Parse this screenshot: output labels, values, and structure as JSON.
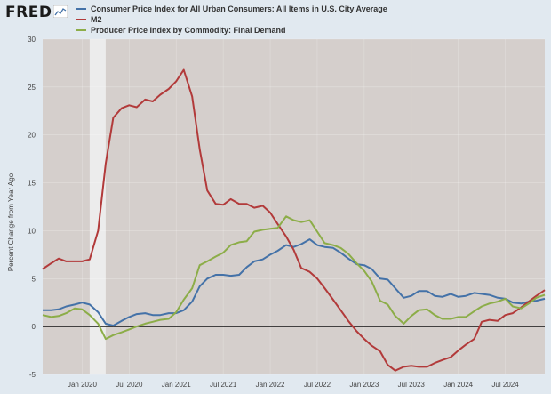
{
  "header": {
    "logo_text": "FRED",
    "logo_icon": "chart-line-icon"
  },
  "chart_data": {
    "type": "line",
    "ylabel": "Percent Change from Year Ago",
    "xlabel": "",
    "ylim": [
      -5,
      30
    ],
    "yticks": [
      -5,
      0,
      5,
      10,
      15,
      20,
      25,
      30
    ],
    "xticks": [
      {
        "label": "Jan 2020",
        "t": 2020.0
      },
      {
        "label": "Jul 2020",
        "t": 2020.5
      },
      {
        "label": "Jan 2021",
        "t": 2021.0
      },
      {
        "label": "Jul 2021",
        "t": 2021.5
      },
      {
        "label": "Jan 2022",
        "t": 2022.0
      },
      {
        "label": "Jul 2022",
        "t": 2022.5
      },
      {
        "label": "Jan 2023",
        "t": 2023.0
      },
      {
        "label": "Jul 2023",
        "t": 2023.5
      },
      {
        "label": "Jan 2024",
        "t": 2024.0
      },
      {
        "label": "Jul 2024",
        "t": 2024.5
      }
    ],
    "xlim": [
      2019.58,
      2024.92
    ],
    "recession": [
      2020.08,
      2020.25
    ],
    "background": "#d5cfcc",
    "recession_color": "#ececec",
    "series": [
      {
        "name": "Consumer Price Index for All Urban Consumers: All Items in U.S. City Average",
        "color": "#4472a8",
        "points": [
          [
            2019.58,
            1.7
          ],
          [
            2019.67,
            1.7
          ],
          [
            2019.75,
            1.8
          ],
          [
            2019.83,
            2.1
          ],
          [
            2019.92,
            2.3
          ],
          [
            2020.0,
            2.5
          ],
          [
            2020.08,
            2.3
          ],
          [
            2020.17,
            1.5
          ],
          [
            2020.25,
            0.3
          ],
          [
            2020.33,
            0.1
          ],
          [
            2020.42,
            0.6
          ],
          [
            2020.5,
            1.0
          ],
          [
            2020.58,
            1.3
          ],
          [
            2020.67,
            1.4
          ],
          [
            2020.75,
            1.2
          ],
          [
            2020.83,
            1.2
          ],
          [
            2020.92,
            1.4
          ],
          [
            2021.0,
            1.4
          ],
          [
            2021.08,
            1.7
          ],
          [
            2021.17,
            2.6
          ],
          [
            2021.25,
            4.2
          ],
          [
            2021.33,
            5.0
          ],
          [
            2021.42,
            5.4
          ],
          [
            2021.5,
            5.4
          ],
          [
            2021.58,
            5.3
          ],
          [
            2021.67,
            5.4
          ],
          [
            2021.75,
            6.2
          ],
          [
            2021.83,
            6.8
          ],
          [
            2021.92,
            7.0
          ],
          [
            2022.0,
            7.5
          ],
          [
            2022.08,
            7.9
          ],
          [
            2022.17,
            8.5
          ],
          [
            2022.25,
            8.3
          ],
          [
            2022.33,
            8.6
          ],
          [
            2022.42,
            9.1
          ],
          [
            2022.5,
            8.5
          ],
          [
            2022.58,
            8.3
          ],
          [
            2022.67,
            8.2
          ],
          [
            2022.75,
            7.7
          ],
          [
            2022.83,
            7.1
          ],
          [
            2022.92,
            6.5
          ],
          [
            2023.0,
            6.4
          ],
          [
            2023.08,
            6.0
          ],
          [
            2023.17,
            5.0
          ],
          [
            2023.25,
            4.9
          ],
          [
            2023.33,
            4.0
          ],
          [
            2023.42,
            3.0
          ],
          [
            2023.5,
            3.2
          ],
          [
            2023.58,
            3.7
          ],
          [
            2023.67,
            3.7
          ],
          [
            2023.75,
            3.2
          ],
          [
            2023.83,
            3.1
          ],
          [
            2023.92,
            3.4
          ],
          [
            2024.0,
            3.1
          ],
          [
            2024.08,
            3.2
          ],
          [
            2024.17,
            3.5
          ],
          [
            2024.25,
            3.4
          ],
          [
            2024.33,
            3.3
          ],
          [
            2024.42,
            3.0
          ],
          [
            2024.5,
            2.9
          ],
          [
            2024.58,
            2.5
          ],
          [
            2024.67,
            2.4
          ],
          [
            2024.75,
            2.6
          ],
          [
            2024.83,
            2.7
          ],
          [
            2024.92,
            2.9
          ]
        ]
      },
      {
        "name": "M2",
        "color": "#b23a3a",
        "points": [
          [
            2019.58,
            6.0
          ],
          [
            2019.67,
            6.6
          ],
          [
            2019.75,
            7.1
          ],
          [
            2019.83,
            6.8
          ],
          [
            2019.92,
            6.8
          ],
          [
            2020.0,
            6.8
          ],
          [
            2020.08,
            7.0
          ],
          [
            2020.17,
            10.0
          ],
          [
            2020.25,
            17.0
          ],
          [
            2020.33,
            21.8
          ],
          [
            2020.42,
            22.8
          ],
          [
            2020.5,
            23.1
          ],
          [
            2020.58,
            22.9
          ],
          [
            2020.67,
            23.7
          ],
          [
            2020.75,
            23.5
          ],
          [
            2020.83,
            24.2
          ],
          [
            2020.92,
            24.8
          ],
          [
            2021.0,
            25.6
          ],
          [
            2021.08,
            26.8
          ],
          [
            2021.17,
            24.0
          ],
          [
            2021.25,
            18.5
          ],
          [
            2021.33,
            14.2
          ],
          [
            2021.42,
            12.8
          ],
          [
            2021.5,
            12.7
          ],
          [
            2021.58,
            13.3
          ],
          [
            2021.67,
            12.8
          ],
          [
            2021.75,
            12.8
          ],
          [
            2021.83,
            12.4
          ],
          [
            2021.92,
            12.6
          ],
          [
            2022.0,
            11.9
          ],
          [
            2022.08,
            10.7
          ],
          [
            2022.17,
            9.4
          ],
          [
            2022.25,
            8.0
          ],
          [
            2022.33,
            6.1
          ],
          [
            2022.42,
            5.7
          ],
          [
            2022.5,
            5.0
          ],
          [
            2022.58,
            4.0
          ],
          [
            2022.67,
            2.8
          ],
          [
            2022.75,
            1.7
          ],
          [
            2022.83,
            0.6
          ],
          [
            2022.92,
            -0.5
          ],
          [
            2023.0,
            -1.3
          ],
          [
            2023.08,
            -2.0
          ],
          [
            2023.17,
            -2.6
          ],
          [
            2023.25,
            -4.0
          ],
          [
            2023.33,
            -4.6
          ],
          [
            2023.42,
            -4.2
          ],
          [
            2023.5,
            -4.1
          ],
          [
            2023.58,
            -4.2
          ],
          [
            2023.67,
            -4.2
          ],
          [
            2023.75,
            -3.8
          ],
          [
            2023.83,
            -3.5
          ],
          [
            2023.92,
            -3.2
          ],
          [
            2024.0,
            -2.5
          ],
          [
            2024.08,
            -1.9
          ],
          [
            2024.17,
            -1.3
          ],
          [
            2024.25,
            0.5
          ],
          [
            2024.33,
            0.7
          ],
          [
            2024.42,
            0.6
          ],
          [
            2024.5,
            1.2
          ],
          [
            2024.58,
            1.4
          ],
          [
            2024.67,
            2.0
          ],
          [
            2024.75,
            2.6
          ],
          [
            2024.83,
            3.2
          ],
          [
            2024.92,
            3.8
          ]
        ]
      },
      {
        "name": "Producer Price Index by Commodity: Final Demand",
        "color": "#8cad48",
        "points": [
          [
            2019.58,
            1.2
          ],
          [
            2019.67,
            1.0
          ],
          [
            2019.75,
            1.1
          ],
          [
            2019.83,
            1.4
          ],
          [
            2019.92,
            1.9
          ],
          [
            2020.0,
            1.8
          ],
          [
            2020.08,
            1.2
          ],
          [
            2020.17,
            0.3
          ],
          [
            2020.25,
            -1.3
          ],
          [
            2020.33,
            -0.9
          ],
          [
            2020.42,
            -0.6
          ],
          [
            2020.5,
            -0.3
          ],
          [
            2020.58,
            0.0
          ],
          [
            2020.67,
            0.3
          ],
          [
            2020.75,
            0.5
          ],
          [
            2020.83,
            0.7
          ],
          [
            2020.92,
            0.8
          ],
          [
            2021.0,
            1.5
          ],
          [
            2021.08,
            2.8
          ],
          [
            2021.17,
            4.0
          ],
          [
            2021.25,
            6.4
          ],
          [
            2021.33,
            6.8
          ],
          [
            2021.42,
            7.3
          ],
          [
            2021.5,
            7.7
          ],
          [
            2021.58,
            8.5
          ],
          [
            2021.67,
            8.8
          ],
          [
            2021.75,
            8.9
          ],
          [
            2021.83,
            9.9
          ],
          [
            2021.92,
            10.1
          ],
          [
            2022.0,
            10.2
          ],
          [
            2022.08,
            10.3
          ],
          [
            2022.17,
            11.5
          ],
          [
            2022.25,
            11.1
          ],
          [
            2022.33,
            10.9
          ],
          [
            2022.42,
            11.1
          ],
          [
            2022.5,
            9.9
          ],
          [
            2022.58,
            8.7
          ],
          [
            2022.67,
            8.5
          ],
          [
            2022.75,
            8.2
          ],
          [
            2022.83,
            7.6
          ],
          [
            2022.92,
            6.6
          ],
          [
            2023.0,
            5.8
          ],
          [
            2023.08,
            4.7
          ],
          [
            2023.17,
            2.7
          ],
          [
            2023.25,
            2.3
          ],
          [
            2023.33,
            1.1
          ],
          [
            2023.42,
            0.3
          ],
          [
            2023.5,
            1.1
          ],
          [
            2023.58,
            1.7
          ],
          [
            2023.67,
            1.8
          ],
          [
            2023.75,
            1.2
          ],
          [
            2023.83,
            0.8
          ],
          [
            2023.92,
            0.8
          ],
          [
            2024.0,
            1.0
          ],
          [
            2024.08,
            1.0
          ],
          [
            2024.17,
            1.6
          ],
          [
            2024.25,
            2.1
          ],
          [
            2024.33,
            2.4
          ],
          [
            2024.42,
            2.6
          ],
          [
            2024.5,
            2.9
          ],
          [
            2024.58,
            2.1
          ],
          [
            2024.67,
            1.9
          ],
          [
            2024.75,
            2.4
          ],
          [
            2024.83,
            3.0
          ],
          [
            2024.92,
            3.3
          ]
        ]
      }
    ]
  }
}
